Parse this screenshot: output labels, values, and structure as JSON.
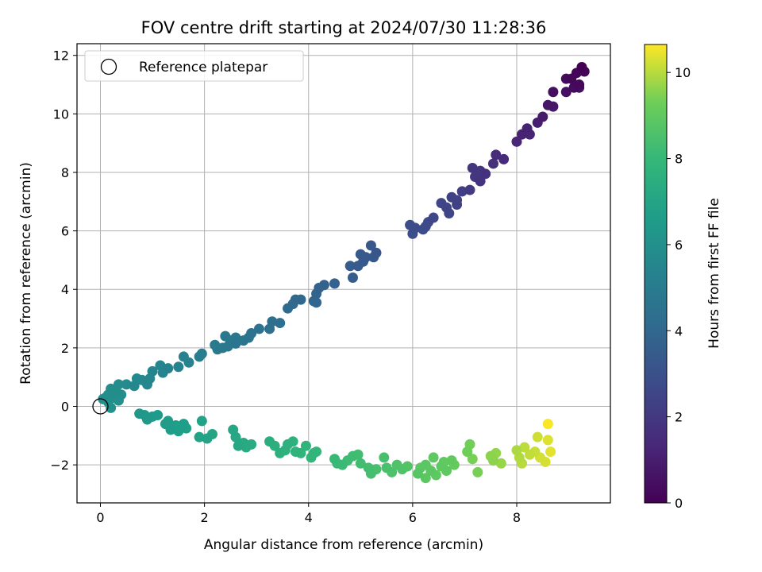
{
  "chart_data": {
    "type": "scatter",
    "title": "FOV centre drift starting at 2024/07/30 11:28:36",
    "xlabel": "Angular distance from reference (arcmin)",
    "ylabel": "Rotation from reference (arcmin)",
    "xlim": [
      -0.45,
      9.8
    ],
    "ylim": [
      -3.3,
      12.4
    ],
    "xticks": [
      0,
      2,
      4,
      6,
      8
    ],
    "yticks": [
      -2,
      0,
      2,
      4,
      6,
      8,
      10,
      12
    ],
    "grid": true,
    "colormap": "viridis",
    "colorbar": {
      "label": "Hours from first FF file",
      "range": [
        0,
        10.65
      ],
      "ticks": [
        0,
        2,
        4,
        6,
        8,
        10
      ]
    },
    "legend": {
      "position": "top-left",
      "entries": [
        "Reference platepar"
      ]
    },
    "reference_point": {
      "x": 0,
      "y": 0,
      "label": "Reference platepar"
    },
    "series": [
      {
        "points": [
          [
            9.25,
            11.6,
            0.0
          ],
          [
            9.15,
            11.4,
            0.1
          ],
          [
            9.3,
            11.45,
            0.15
          ],
          [
            9.05,
            11.2,
            0.2
          ],
          [
            9.2,
            11.0,
            0.25
          ],
          [
            8.95,
            11.2,
            0.3
          ],
          [
            9.1,
            10.9,
            0.35
          ],
          [
            8.7,
            10.75,
            0.45
          ],
          [
            8.95,
            10.75,
            0.5
          ],
          [
            9.2,
            10.9,
            0.55
          ],
          [
            8.6,
            10.3,
            0.7
          ],
          [
            8.7,
            10.25,
            0.8
          ],
          [
            8.5,
            9.9,
            0.9
          ],
          [
            8.4,
            9.7,
            1.0
          ],
          [
            8.2,
            9.5,
            1.1
          ],
          [
            8.1,
            9.3,
            1.15
          ],
          [
            8.25,
            9.3,
            1.2
          ],
          [
            8.0,
            9.05,
            1.3
          ],
          [
            7.75,
            8.45,
            1.4
          ],
          [
            7.6,
            8.6,
            1.5
          ],
          [
            7.55,
            8.3,
            1.6
          ],
          [
            7.4,
            7.95,
            1.7
          ],
          [
            7.3,
            7.7,
            1.8
          ],
          [
            7.15,
            8.15,
            1.85
          ],
          [
            7.2,
            7.85,
            1.9
          ],
          [
            7.3,
            8.05,
            1.95
          ],
          [
            7.1,
            7.4,
            2.1
          ],
          [
            6.95,
            7.35,
            2.2
          ],
          [
            6.85,
            7.05,
            2.3
          ],
          [
            6.75,
            7.15,
            2.35
          ],
          [
            6.65,
            6.8,
            2.45
          ],
          [
            6.7,
            6.6,
            2.5
          ],
          [
            6.85,
            6.9,
            2.4
          ],
          [
            6.55,
            6.95,
            2.5
          ],
          [
            6.4,
            6.45,
            2.6
          ],
          [
            6.3,
            6.3,
            2.7
          ],
          [
            6.25,
            6.15,
            2.75
          ],
          [
            6.05,
            6.1,
            2.8
          ],
          [
            5.95,
            6.2,
            2.85
          ],
          [
            6.0,
            5.9,
            2.9
          ],
          [
            6.2,
            6.05,
            2.8
          ],
          [
            5.3,
            5.25,
            3.2
          ],
          [
            5.2,
            5.5,
            3.3
          ],
          [
            5.1,
            5.1,
            3.35
          ],
          [
            5.05,
            4.95,
            3.4
          ],
          [
            4.95,
            4.8,
            3.45
          ],
          [
            5.0,
            5.2,
            3.4
          ],
          [
            4.85,
            4.4,
            3.5
          ],
          [
            4.8,
            4.8,
            3.5
          ],
          [
            5.25,
            5.1,
            3.3
          ],
          [
            4.5,
            4.2,
            3.7
          ],
          [
            4.3,
            4.15,
            3.75
          ],
          [
            4.2,
            4.05,
            3.8
          ],
          [
            4.15,
            3.85,
            3.85
          ],
          [
            4.1,
            3.6,
            3.9
          ],
          [
            4.15,
            3.55,
            3.9
          ],
          [
            3.85,
            3.65,
            4.0
          ],
          [
            3.75,
            3.65,
            4.05
          ],
          [
            3.6,
            3.35,
            4.1
          ],
          [
            3.7,
            3.5,
            4.1
          ],
          [
            3.45,
            2.85,
            4.3
          ],
          [
            3.3,
            2.9,
            4.35
          ],
          [
            3.25,
            2.65,
            4.4
          ],
          [
            3.05,
            2.65,
            4.5
          ],
          [
            2.9,
            2.5,
            4.55
          ],
          [
            2.85,
            2.35,
            4.6
          ],
          [
            2.75,
            2.25,
            4.65
          ],
          [
            2.6,
            2.15,
            4.7
          ],
          [
            2.5,
            2.25,
            4.75
          ],
          [
            2.4,
            2.4,
            4.8
          ],
          [
            2.35,
            2.0,
            4.85
          ],
          [
            2.25,
            1.95,
            4.9
          ],
          [
            2.2,
            2.1,
            4.9
          ],
          [
            2.45,
            2.05,
            4.8
          ],
          [
            2.6,
            2.35,
            4.75
          ],
          [
            1.95,
            1.8,
            5.1
          ],
          [
            1.9,
            1.7,
            5.15
          ],
          [
            1.7,
            1.5,
            5.25
          ],
          [
            1.6,
            1.7,
            5.25
          ],
          [
            1.5,
            1.35,
            5.3
          ],
          [
            1.3,
            1.3,
            5.35
          ],
          [
            1.2,
            1.15,
            5.4
          ],
          [
            1.15,
            1.4,
            5.4
          ],
          [
            1.0,
            1.2,
            5.45
          ],
          [
            0.95,
            0.95,
            5.5
          ],
          [
            0.9,
            0.75,
            5.55
          ],
          [
            0.8,
            0.9,
            5.6
          ],
          [
            0.7,
            0.95,
            5.6
          ],
          [
            0.65,
            0.7,
            5.65
          ],
          [
            0.5,
            0.75,
            5.7
          ],
          [
            0.35,
            0.75,
            5.8
          ],
          [
            0.3,
            0.5,
            5.85
          ],
          [
            0.25,
            0.45,
            5.85
          ],
          [
            0.2,
            0.6,
            5.9
          ],
          [
            0.15,
            0.4,
            5.9
          ],
          [
            0.1,
            0.3,
            5.95
          ],
          [
            0.05,
            0.25,
            5.95
          ],
          [
            0.15,
            0.15,
            6.0
          ],
          [
            0.25,
            0.3,
            6.0
          ],
          [
            0.4,
            0.4,
            5.9
          ],
          [
            0.35,
            0.2,
            6.0
          ],
          [
            0.2,
            -0.05,
            6.05
          ],
          [
            0.75,
            -0.25,
            6.3
          ],
          [
            0.85,
            -0.3,
            6.35
          ],
          [
            0.9,
            -0.45,
            6.4
          ],
          [
            1.0,
            -0.35,
            6.45
          ],
          [
            1.1,
            -0.3,
            6.5
          ],
          [
            1.25,
            -0.6,
            6.55
          ],
          [
            1.35,
            -0.8,
            6.6
          ],
          [
            1.45,
            -0.65,
            6.65
          ],
          [
            1.5,
            -0.85,
            6.7
          ],
          [
            1.6,
            -0.6,
            6.65
          ],
          [
            1.65,
            -0.75,
            6.75
          ],
          [
            1.3,
            -0.5,
            6.55
          ],
          [
            1.95,
            -0.5,
            6.85
          ],
          [
            1.9,
            -1.05,
            6.9
          ],
          [
            2.05,
            -1.1,
            6.95
          ],
          [
            2.15,
            -0.95,
            7.0
          ],
          [
            2.55,
            -0.8,
            7.1
          ],
          [
            2.6,
            -1.05,
            7.15
          ],
          [
            2.65,
            -1.35,
            7.2
          ],
          [
            2.75,
            -1.25,
            7.25
          ],
          [
            2.8,
            -1.4,
            7.3
          ],
          [
            2.9,
            -1.3,
            7.35
          ],
          [
            3.25,
            -1.2,
            7.45
          ],
          [
            3.35,
            -1.35,
            7.5
          ],
          [
            3.45,
            -1.6,
            7.55
          ],
          [
            3.55,
            -1.5,
            7.6
          ],
          [
            3.6,
            -1.3,
            7.6
          ],
          [
            3.7,
            -1.2,
            7.65
          ],
          [
            3.75,
            -1.55,
            7.7
          ],
          [
            3.85,
            -1.6,
            7.75
          ],
          [
            3.95,
            -1.35,
            7.75
          ],
          [
            4.05,
            -1.75,
            7.85
          ],
          [
            4.1,
            -1.6,
            7.85
          ],
          [
            4.15,
            -1.55,
            7.9
          ],
          [
            4.5,
            -1.8,
            8.05
          ],
          [
            4.55,
            -1.95,
            8.1
          ],
          [
            4.65,
            -2.0,
            8.15
          ],
          [
            4.75,
            -1.85,
            8.2
          ],
          [
            4.85,
            -1.7,
            8.25
          ],
          [
            4.95,
            -1.65,
            8.3
          ],
          [
            5.0,
            -1.95,
            8.3
          ],
          [
            5.15,
            -2.1,
            8.35
          ],
          [
            5.2,
            -2.3,
            8.4
          ],
          [
            5.3,
            -2.15,
            8.45
          ],
          [
            5.45,
            -1.75,
            8.45
          ],
          [
            5.5,
            -2.1,
            8.5
          ],
          [
            5.6,
            -2.25,
            8.55
          ],
          [
            5.7,
            -2.0,
            8.6
          ],
          [
            5.8,
            -2.15,
            8.65
          ],
          [
            5.9,
            -2.05,
            8.7
          ],
          [
            6.1,
            -2.3,
            8.8
          ],
          [
            6.15,
            -2.1,
            8.85
          ],
          [
            6.25,
            -2.0,
            8.85
          ],
          [
            6.35,
            -2.2,
            8.9
          ],
          [
            6.45,
            -2.35,
            8.95
          ],
          [
            6.55,
            -2.05,
            8.95
          ],
          [
            6.65,
            -2.2,
            9.0
          ],
          [
            6.75,
            -1.85,
            9.05
          ],
          [
            6.8,
            -2.0,
            9.1
          ],
          [
            6.6,
            -1.9,
            9.0
          ],
          [
            6.4,
            -1.75,
            8.95
          ],
          [
            6.25,
            -2.45,
            8.9
          ],
          [
            7.05,
            -1.55,
            9.3
          ],
          [
            7.1,
            -1.3,
            9.35
          ],
          [
            7.15,
            -1.8,
            9.4
          ],
          [
            7.25,
            -2.25,
            9.4
          ],
          [
            7.5,
            -1.7,
            9.6
          ],
          [
            7.55,
            -1.85,
            9.6
          ],
          [
            7.6,
            -1.6,
            9.65
          ],
          [
            7.7,
            -1.95,
            9.7
          ],
          [
            8.0,
            -1.5,
            9.9
          ],
          [
            8.05,
            -1.75,
            9.95
          ],
          [
            8.1,
            -1.95,
            10.0
          ],
          [
            8.15,
            -1.4,
            10.05
          ],
          [
            8.25,
            -1.65,
            10.1
          ],
          [
            8.35,
            -1.55,
            10.15
          ],
          [
            8.4,
            -1.05,
            10.2
          ],
          [
            8.45,
            -1.75,
            10.25
          ],
          [
            8.55,
            -1.9,
            10.3
          ],
          [
            8.6,
            -1.15,
            10.35
          ],
          [
            8.65,
            -1.55,
            10.4
          ],
          [
            8.6,
            -0.6,
            10.6
          ]
        ]
      }
    ]
  }
}
